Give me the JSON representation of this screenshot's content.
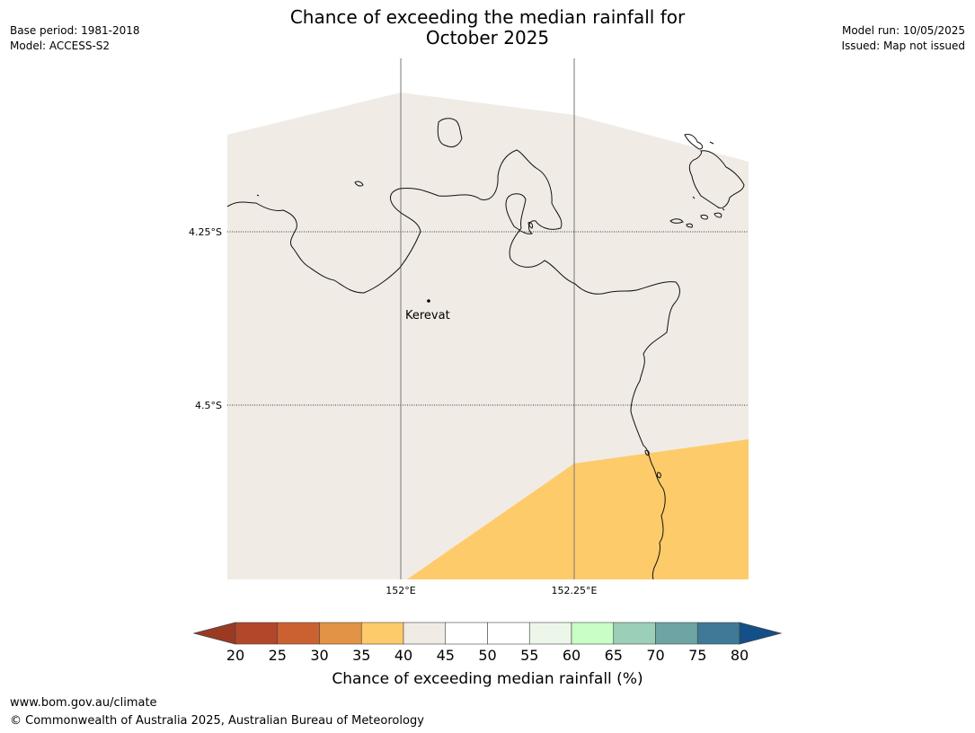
{
  "header": {
    "title_line1": "Chance of exceeding the median rainfall for",
    "title_line2": "October 2025",
    "base_period": "Base period: 1981-2018",
    "model": "Model: ACCESS-S2",
    "model_run": "Model run: 10/05/2025",
    "issued": "Issued: Map not issued"
  },
  "map": {
    "place": "Kerevat",
    "lat_labels": [
      "4.25°S",
      "4.5°S"
    ],
    "lon_labels": [
      "152°E",
      "152.25°E"
    ],
    "land_color": "#f0ebe5",
    "band_35_40_color": "#fecb6a"
  },
  "colorbar": {
    "label": "Chance of exceeding median rainfall (%)",
    "ticks": [
      "20",
      "25",
      "30",
      "35",
      "40",
      "45",
      "50",
      "55",
      "60",
      "65",
      "70",
      "75",
      "80"
    ],
    "low_extend_color": "#9b3a22",
    "high_extend_color": "#134f89",
    "colors": [
      "#b2472a",
      "#cb6131",
      "#e39345",
      "#fecb6a",
      "#f0ebe5",
      "#ffffff",
      "#ffffff",
      "#ecf6e9",
      "#c8ffc6",
      "#9ccfb7",
      "#6ea4a4",
      "#3f7998"
    ]
  },
  "footer": {
    "url": "www.bom.gov.au/climate",
    "copyright": "© Commonwealth of Australia 2025, Australian Bureau of Meteorology"
  }
}
